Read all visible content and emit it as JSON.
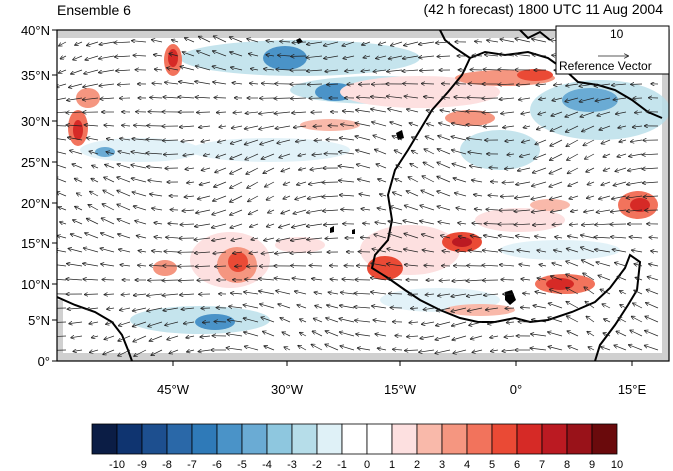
{
  "title_left": "Ensemble 6",
  "title_right": "(42 h forecast) 1800 UTC 11 Aug 2004",
  "reference": {
    "magnitude": "10",
    "label": "Reference Vector"
  },
  "axes": {
    "y_ticks": [
      "0°",
      "5°N",
      "10°N",
      "15°N",
      "20°N",
      "25°N",
      "30°N",
      "35°N",
      "40°N"
    ],
    "x_ticks": [
      "45°W",
      "30°W",
      "15°W",
      "0°",
      "15°E"
    ]
  },
  "colorbar": {
    "labels": [
      "-10",
      "-9",
      "-8",
      "-7",
      "-6",
      "-5",
      "-4",
      "-3",
      "-2",
      "-1",
      "0",
      "1",
      "2",
      "3",
      "4",
      "5",
      "6",
      "7",
      "8",
      "9",
      "10"
    ],
    "colors": [
      "#0b1d45",
      "#0f3470",
      "#1d4f8f",
      "#2a68a8",
      "#2f7ab8",
      "#4a93c8",
      "#6aabd4",
      "#8ec7df",
      "#b6dde9",
      "#dff1f7",
      "#ffffff",
      "#ffffff",
      "#fde0e0",
      "#f9b9aa",
      "#f59680",
      "#f2735c",
      "#ea4a35",
      "#d62a26",
      "#bb1a22",
      "#991219",
      "#6a0a0c"
    ]
  }
}
